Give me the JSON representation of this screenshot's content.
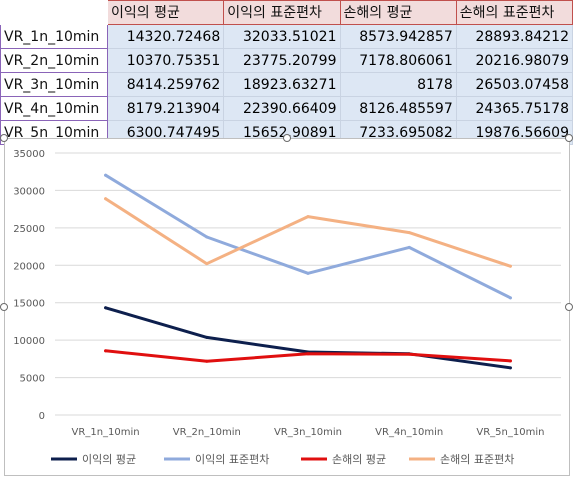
{
  "table": {
    "headers": [
      "이익의 평균",
      "이익의 표준편차",
      "손해의 평균",
      "손해의 표준편차"
    ],
    "rows": [
      {
        "label": "VR_1n_10min",
        "values": [
          "14320.72468",
          "32033.51021",
          "8573.942857",
          "28893.84212"
        ]
      },
      {
        "label": "VR_2n_10min",
        "values": [
          "10370.75351",
          "23775.20799",
          "7178.806061",
          "20216.98079"
        ]
      },
      {
        "label": "VR_3n_10min",
        "values": [
          "8414.259762",
          "18923.63271",
          "8178",
          "26503.07458"
        ]
      },
      {
        "label": "VR_4n_10min",
        "values": [
          "8179.213904",
          "22390.66409",
          "8126.485597",
          "24365.75178"
        ]
      },
      {
        "label": "VR_5n_10min",
        "values": [
          "6300.747495",
          "15652.90891",
          "7233.695082",
          "19876.56609"
        ]
      }
    ]
  },
  "chart_data": {
    "type": "line",
    "categories": [
      "VR_1n_10min",
      "VR_2n_10min",
      "VR_3n_10min",
      "VR_4n_10min",
      "VR_5n_10min"
    ],
    "series": [
      {
        "name": "이익의 평균",
        "color": "#0d1f4d",
        "values": [
          14320.72468,
          10370.75351,
          8414.259762,
          8179.213904,
          6300.747495
        ]
      },
      {
        "name": "이익의 표준편차",
        "color": "#8faadc",
        "values": [
          32033.51021,
          23775.20799,
          18923.63271,
          22390.66409,
          15652.90891
        ]
      },
      {
        "name": "손해의 평균",
        "color": "#e00f0f",
        "values": [
          8573.942857,
          7178.806061,
          8178,
          8126.485597,
          7233.695082
        ]
      },
      {
        "name": "손해의 표준편차",
        "color": "#f4b183",
        "values": [
          28893.84212,
          20216.98079,
          26503.07458,
          24365.75178,
          19876.56609
        ]
      }
    ],
    "ylim": [
      0,
      35000
    ],
    "yticks": [
      "0",
      "5000",
      "10000",
      "15000",
      "20000",
      "25000",
      "30000",
      "35000"
    ],
    "grid": true,
    "legend": "bottom",
    "title": "",
    "xlabel": "",
    "ylabel": ""
  }
}
